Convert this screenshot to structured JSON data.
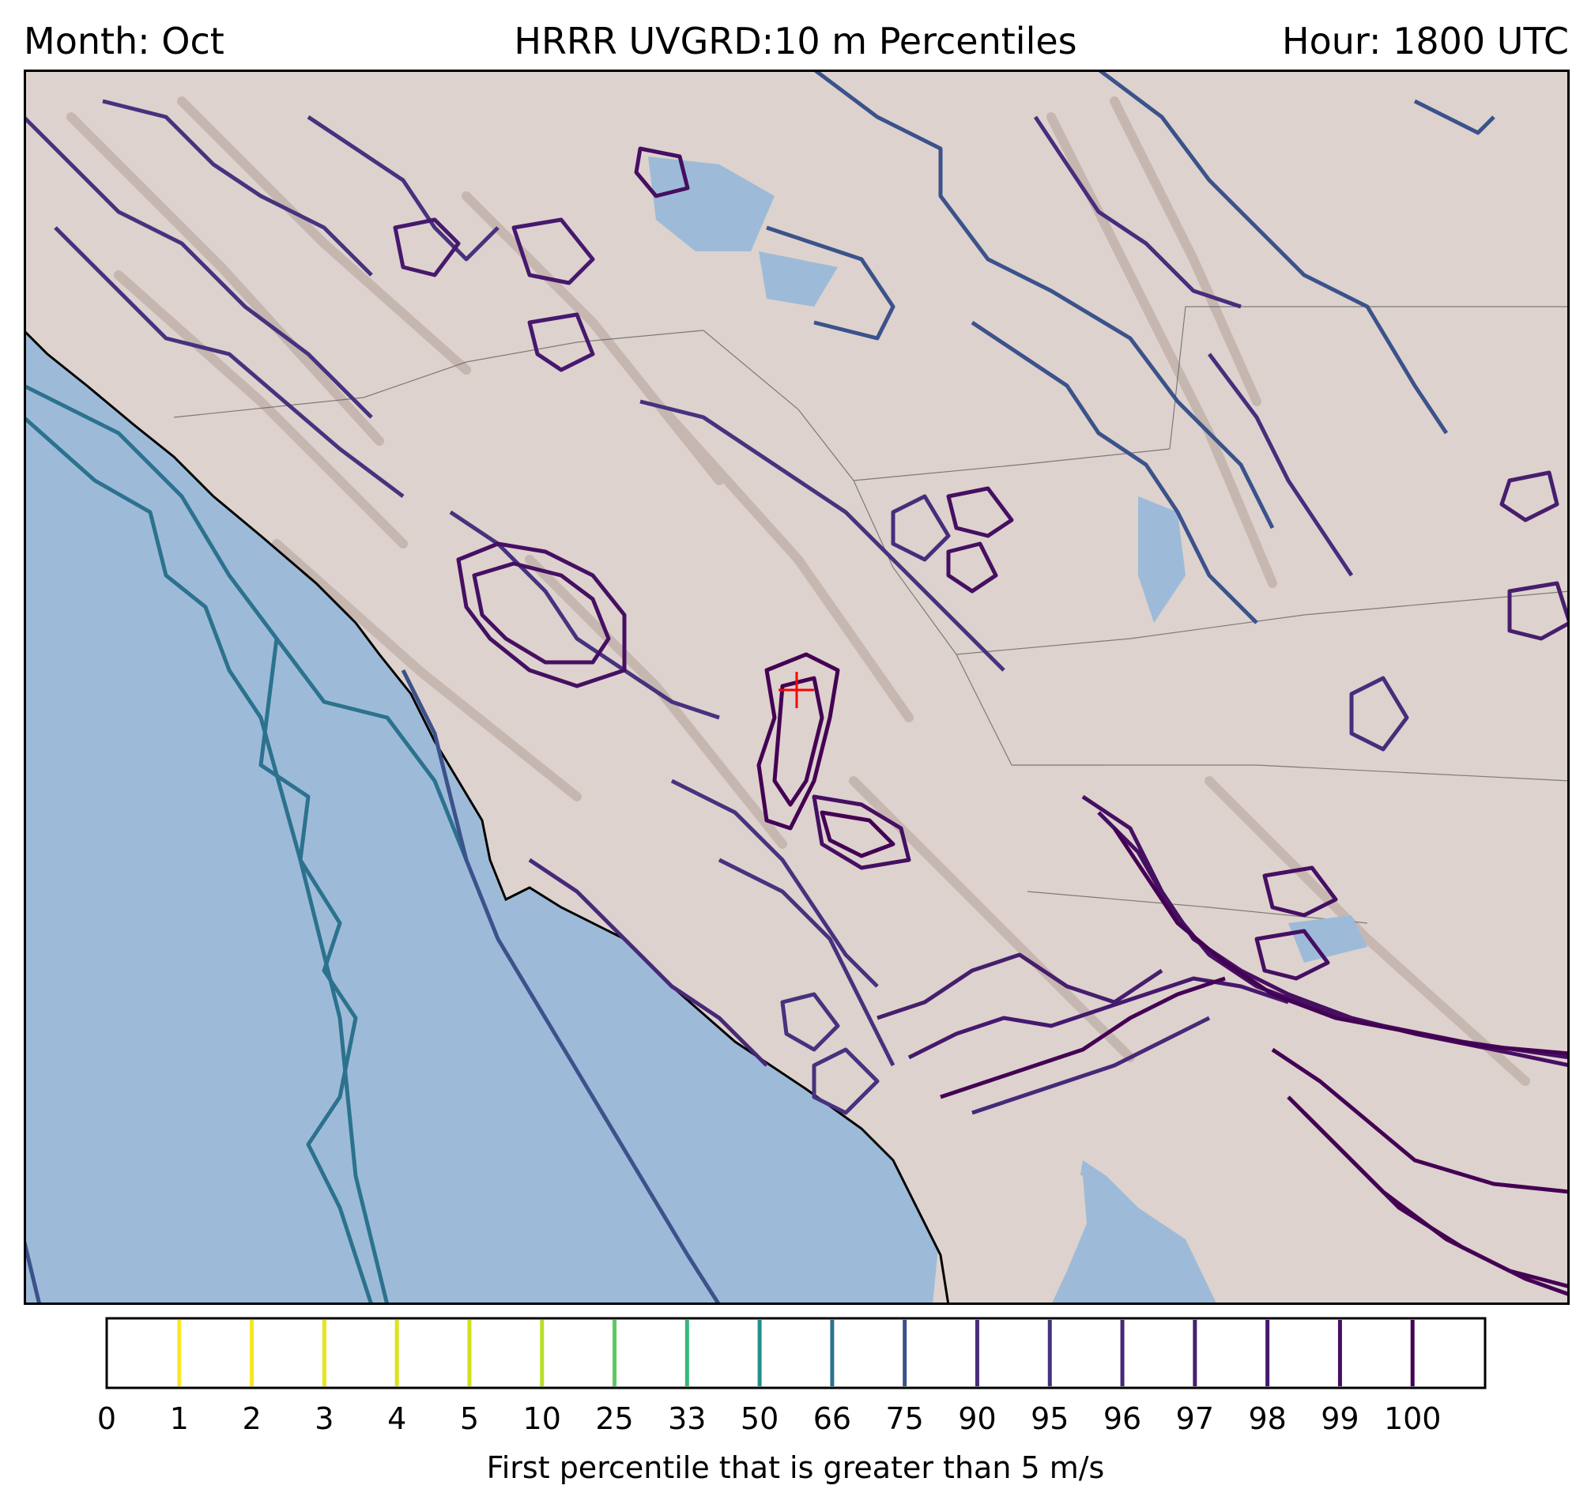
{
  "header": {
    "left": "Month: Oct",
    "center": "HRRR UVGRD:10 m Percentiles",
    "right": "Hour: 1800 UTC"
  },
  "map": {
    "ocean_color": "#9dbbd8",
    "land_color": "#ddd2cd",
    "terrain_color": "#b5a09a",
    "coast_color": "#000000",
    "marker": {
      "icon": "plus-marker-icon",
      "color": "#ff0000"
    }
  },
  "colorbar": {
    "ticks": [
      "0",
      "1",
      "2",
      "3",
      "4",
      "5",
      "10",
      "25",
      "33",
      "50",
      "66",
      "75",
      "90",
      "95",
      "96",
      "97",
      "98",
      "99",
      "100"
    ],
    "colors": [
      "#fde725",
      "#f4e61e",
      "#e8e419",
      "#dde318",
      "#d0e11c",
      "#b8de29",
      "#5ec962",
      "#35b779",
      "#21918c",
      "#2c728e",
      "#3b528b",
      "#472d7b",
      "#46327e",
      "#482878",
      "#471e6d",
      "#46186e",
      "#450f62",
      "#440154"
    ],
    "label": "First percentile that is greater than 5 m/s"
  }
}
